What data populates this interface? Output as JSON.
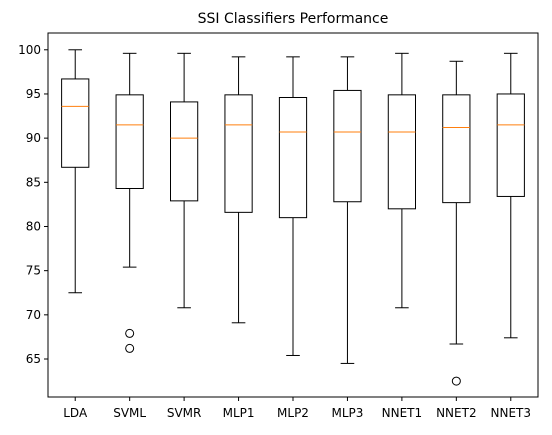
{
  "chart_data": {
    "type": "box",
    "title": "SSI Classifiers Performance",
    "xlabel": "",
    "ylabel": "",
    "ylim": [
      60.7,
      101.9
    ],
    "yticks": [
      65,
      70,
      75,
      80,
      85,
      90,
      95,
      100
    ],
    "grid": false,
    "colors": {
      "box": "#000000",
      "median": "#ff7f0e",
      "background": "#ffffff"
    },
    "categories": [
      "LDA",
      "SVML",
      "SVMR",
      "MLP1",
      "MLP2",
      "MLP3",
      "NNET1",
      "NNET2",
      "NNET3"
    ],
    "boxes": [
      {
        "label": "LDA",
        "whisker_low": 72.5,
        "q1": 86.7,
        "median": 93.6,
        "q3": 96.7,
        "whisker_high": 100.0,
        "outliers": []
      },
      {
        "label": "SVML",
        "whisker_low": 75.4,
        "q1": 84.3,
        "median": 91.5,
        "q3": 94.9,
        "whisker_high": 99.6,
        "outliers": [
          67.9,
          66.2
        ]
      },
      {
        "label": "SVMR",
        "whisker_low": 70.8,
        "q1": 82.9,
        "median": 90.0,
        "q3": 94.1,
        "whisker_high": 99.6,
        "outliers": []
      },
      {
        "label": "MLP1",
        "whisker_low": 69.1,
        "q1": 81.6,
        "median": 91.5,
        "q3": 94.9,
        "whisker_high": 99.2,
        "outliers": []
      },
      {
        "label": "MLP2",
        "whisker_low": 65.4,
        "q1": 81.0,
        "median": 90.7,
        "q3": 94.6,
        "whisker_high": 99.2,
        "outliers": []
      },
      {
        "label": "MLP3",
        "whisker_low": 64.5,
        "q1": 82.8,
        "median": 90.7,
        "q3": 95.4,
        "whisker_high": 99.2,
        "outliers": []
      },
      {
        "label": "NNET1",
        "whisker_low": 70.8,
        "q1": 82.0,
        "median": 90.7,
        "q3": 94.9,
        "whisker_high": 99.6,
        "outliers": []
      },
      {
        "label": "NNET2",
        "whisker_low": 66.7,
        "q1": 82.7,
        "median": 91.2,
        "q3": 94.9,
        "whisker_high": 98.7,
        "outliers": [
          62.5
        ]
      },
      {
        "label": "NNET3",
        "whisker_low": 67.4,
        "q1": 83.4,
        "median": 91.5,
        "q3": 95.0,
        "whisker_high": 99.6,
        "outliers": []
      }
    ]
  }
}
